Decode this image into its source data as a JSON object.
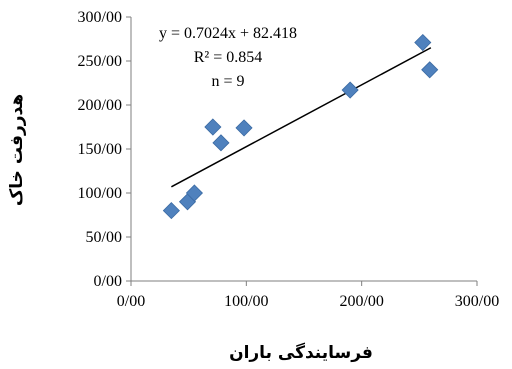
{
  "chart_data": {
    "type": "scatter",
    "xlabel": "فرسایندگی باران",
    "ylabel": "هدررفت خاک",
    "xlim": [
      0,
      300
    ],
    "ylim": [
      0,
      300
    ],
    "x_ticks": [
      "0/00",
      "100/00",
      "200/00",
      "300/00"
    ],
    "x_tick_values": [
      0,
      100,
      200,
      300
    ],
    "y_ticks": [
      "0/00",
      "50/00",
      "100/00",
      "150/00",
      "200/00",
      "250/00",
      "300/00"
    ],
    "y_tick_values": [
      0,
      50,
      100,
      150,
      200,
      250,
      300
    ],
    "grid": false,
    "marker": "diamond",
    "marker_color": "#4F81BD",
    "trendline": {
      "slope": 0.7024,
      "intercept": 82.418,
      "x_range": [
        35,
        260
      ]
    },
    "annotations": [
      "y = 0.7024x + 82.418",
      "R² = 0.854",
      "n = 9"
    ],
    "points": [
      {
        "x": 35,
        "y": 80
      },
      {
        "x": 49,
        "y": 90
      },
      {
        "x": 55,
        "y": 100
      },
      {
        "x": 71,
        "y": 175
      },
      {
        "x": 78,
        "y": 157
      },
      {
        "x": 98,
        "y": 174
      },
      {
        "x": 190,
        "y": 217
      },
      {
        "x": 253,
        "y": 271
      },
      {
        "x": 259,
        "y": 240
      }
    ]
  }
}
